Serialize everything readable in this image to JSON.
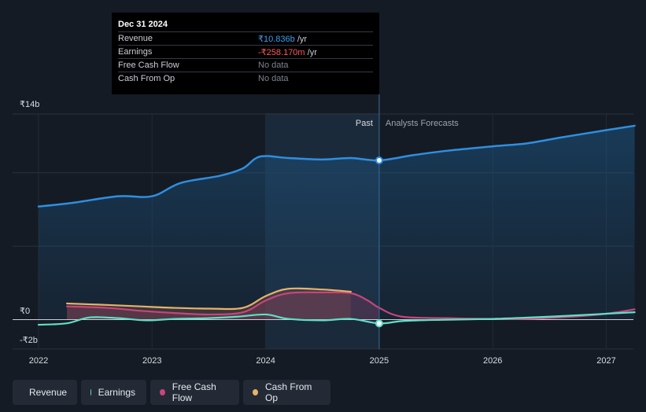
{
  "tooltip": {
    "date": "Dec 31 2024",
    "rows": [
      {
        "label": "Revenue",
        "value": "₹10.836b",
        "unit": "/yr",
        "color": "#3aa0ef"
      },
      {
        "label": "Earnings",
        "value": "-₹258.170m",
        "unit": "/yr",
        "color": "#ff5a5a"
      },
      {
        "label": "Free Cash Flow",
        "value": "No data",
        "unit": "",
        "color": "#7d848e"
      },
      {
        "label": "Cash From Op",
        "value": "No data",
        "unit": "",
        "color": "#7d848e"
      }
    ]
  },
  "chart_data": {
    "type": "line",
    "title": "",
    "xlabel": "",
    "ylabel": "",
    "x_ticks": [
      "2022",
      "2023",
      "2024",
      "2025",
      "2026",
      "2027"
    ],
    "y_tick_labels": {
      "top": "₹14b",
      "zero": "₹0",
      "bottom": "-₹2b"
    },
    "ylim": [
      -2,
      14
    ],
    "past_label": "Past",
    "forecast_label": "Analysts Forecasts",
    "divider_x": 2025.0,
    "series": [
      {
        "name": "Revenue",
        "color": "#2f8fe0",
        "points": [
          [
            2022.0,
            7.7
          ],
          [
            2022.3,
            7.95
          ],
          [
            2022.7,
            8.4
          ],
          [
            2023.0,
            8.4
          ],
          [
            2023.25,
            9.3
          ],
          [
            2023.6,
            9.8
          ],
          [
            2023.8,
            10.3
          ],
          [
            2023.95,
            11.1
          ],
          [
            2024.2,
            11.0
          ],
          [
            2024.5,
            10.9
          ],
          [
            2024.75,
            11.0
          ],
          [
            2025.0,
            10.84
          ],
          [
            2025.3,
            11.2
          ],
          [
            2025.6,
            11.5
          ],
          [
            2026.0,
            11.8
          ],
          [
            2026.3,
            12.0
          ],
          [
            2026.6,
            12.4
          ],
          [
            2027.0,
            12.9
          ],
          [
            2027.25,
            13.2
          ]
        ]
      },
      {
        "name": "Earnings",
        "color": "#5ee0c8",
        "points": [
          [
            2022.0,
            -0.35
          ],
          [
            2022.25,
            -0.25
          ],
          [
            2022.45,
            0.15
          ],
          [
            2022.7,
            0.1
          ],
          [
            2022.95,
            -0.05
          ],
          [
            2023.2,
            0.05
          ],
          [
            2023.5,
            0.1
          ],
          [
            2023.75,
            0.2
          ],
          [
            2024.0,
            0.35
          ],
          [
            2024.2,
            0.05
          ],
          [
            2024.5,
            -0.05
          ],
          [
            2024.75,
            0.05
          ],
          [
            2025.0,
            -0.26
          ],
          [
            2025.2,
            -0.1
          ],
          [
            2025.5,
            -0.02
          ],
          [
            2026.0,
            0.05
          ],
          [
            2026.5,
            0.2
          ],
          [
            2027.0,
            0.4
          ],
          [
            2027.25,
            0.5
          ]
        ]
      },
      {
        "name": "Free Cash Flow",
        "color": "#c8457a",
        "points": [
          [
            2022.25,
            0.9
          ],
          [
            2022.6,
            0.8
          ],
          [
            2022.9,
            0.6
          ],
          [
            2023.2,
            0.45
          ],
          [
            2023.5,
            0.35
          ],
          [
            2023.8,
            0.5
          ],
          [
            2024.0,
            1.3
          ],
          [
            2024.2,
            1.8
          ],
          [
            2024.5,
            1.85
          ],
          [
            2024.75,
            1.8
          ],
          [
            2024.9,
            1.3
          ],
          [
            2025.0,
            0.8
          ],
          [
            2025.2,
            0.2
          ],
          [
            2025.6,
            0.1
          ],
          [
            2026.0,
            0.05
          ],
          [
            2026.3,
            0.05
          ],
          [
            2026.7,
            0.2
          ],
          [
            2027.0,
            0.4
          ],
          [
            2027.25,
            0.7
          ]
        ]
      },
      {
        "name": "Cash From Op",
        "color": "#e8b26a",
        "points": [
          [
            2022.25,
            1.1
          ],
          [
            2022.6,
            1.0
          ],
          [
            2022.9,
            0.9
          ],
          [
            2023.2,
            0.8
          ],
          [
            2023.5,
            0.75
          ],
          [
            2023.8,
            0.8
          ],
          [
            2024.0,
            1.6
          ],
          [
            2024.2,
            2.1
          ],
          [
            2024.5,
            2.05
          ],
          [
            2024.75,
            1.9
          ]
        ]
      }
    ]
  },
  "legend": [
    {
      "label": "Revenue",
      "color": "#2f8fe0"
    },
    {
      "label": "Earnings",
      "color": "#5ee0c8"
    },
    {
      "label": "Free Cash Flow",
      "color": "#c8457a"
    },
    {
      "label": "Cash From Op",
      "color": "#e8b26a"
    }
  ]
}
